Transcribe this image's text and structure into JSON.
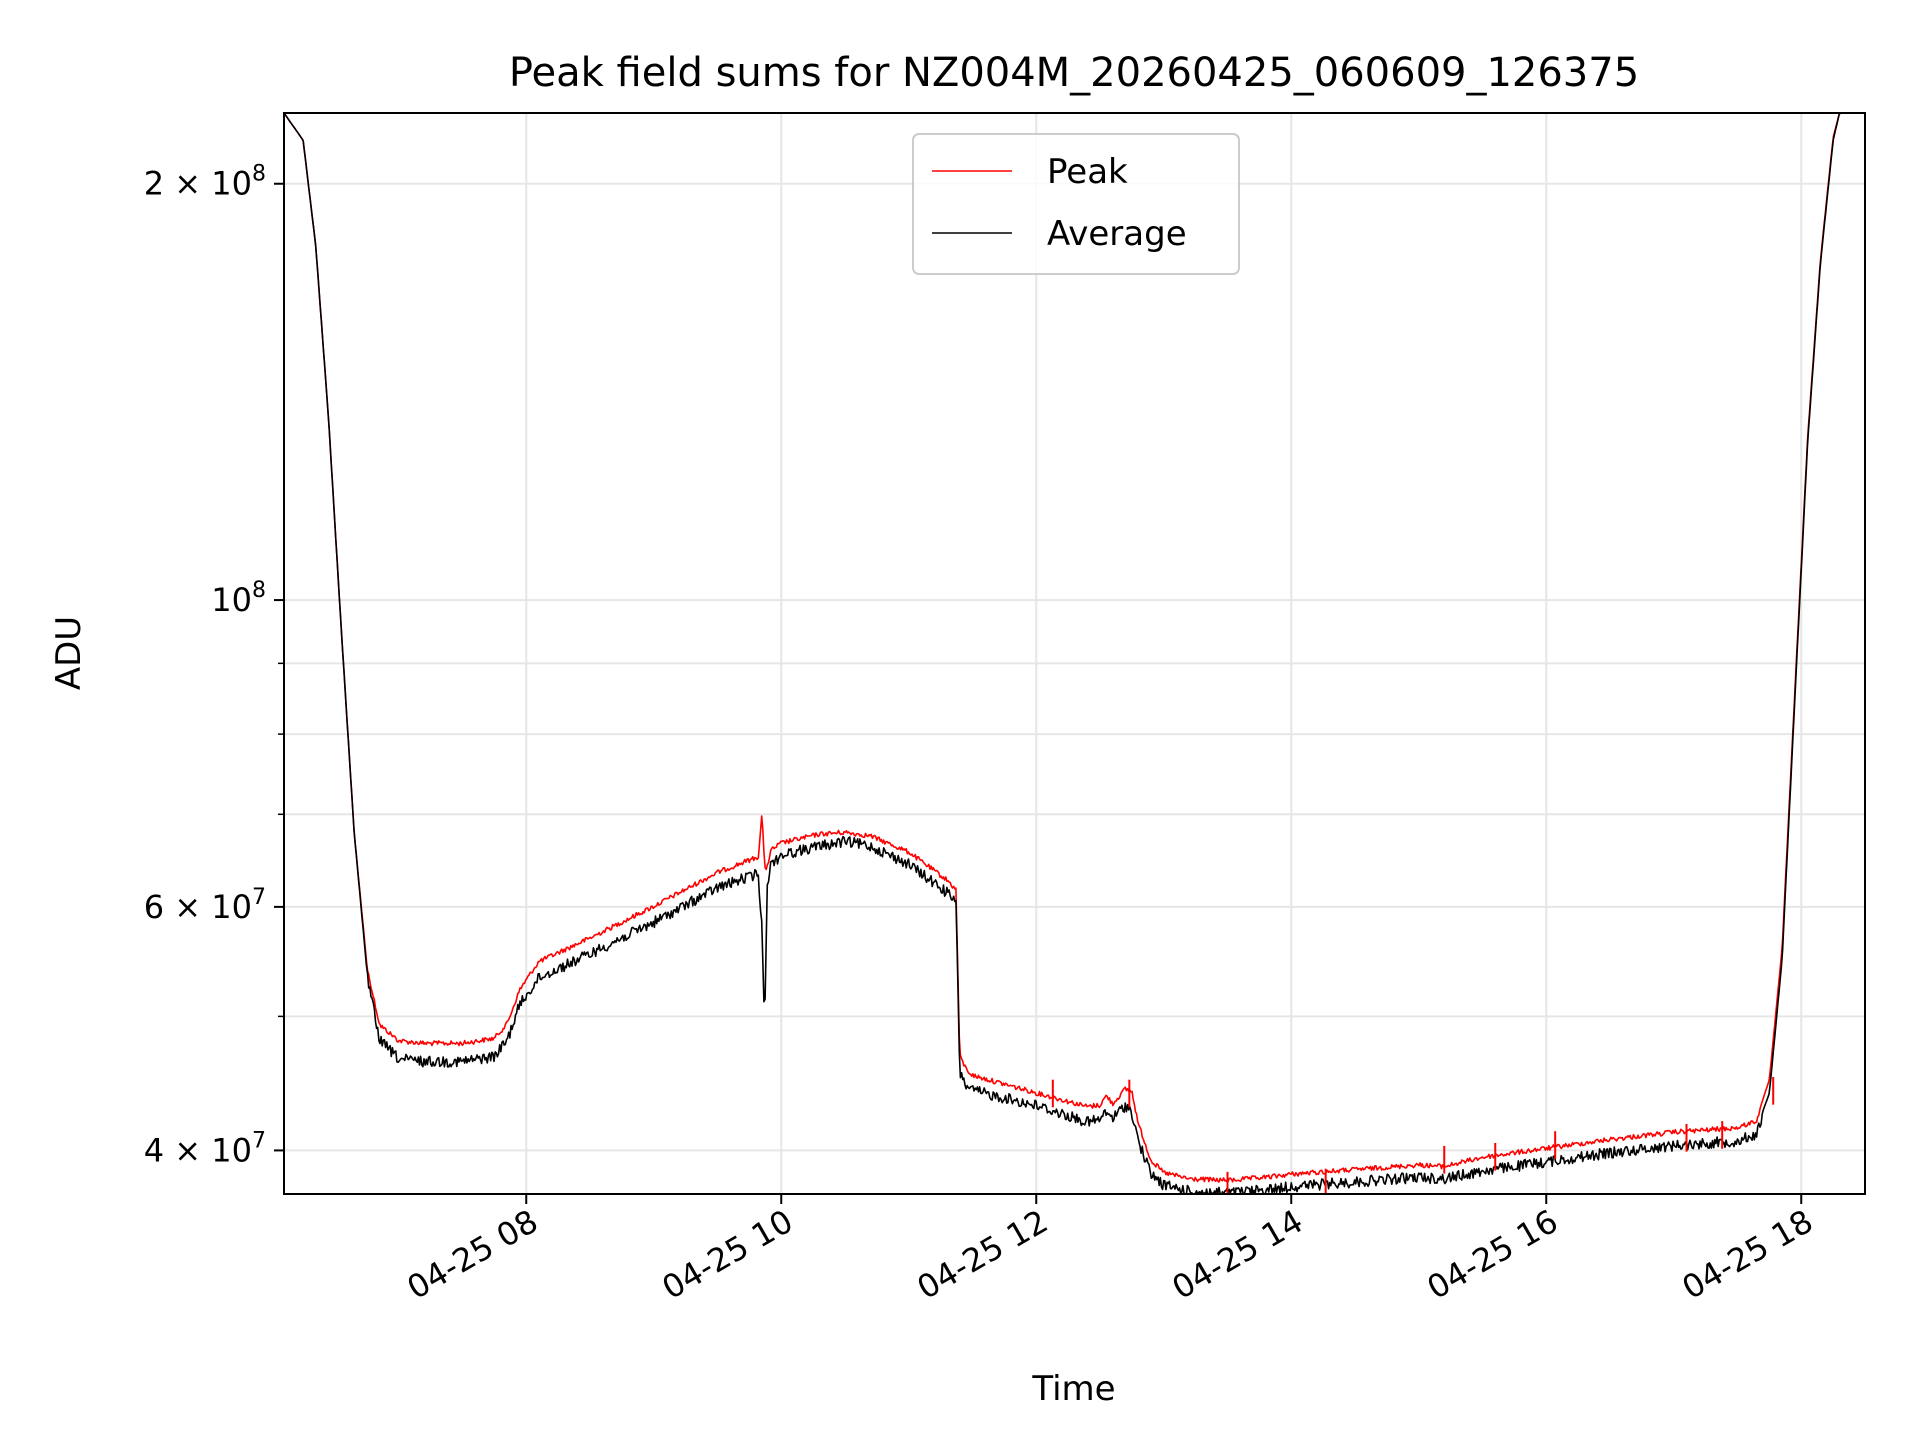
{
  "chart_data": {
    "type": "line",
    "scale": "log-y",
    "title": "Peak field sums for NZ004M_20260425_060609_126375",
    "xlabel": "Time",
    "ylabel": "ADU",
    "x_unit": "hours",
    "xlim": [
      6.1,
      18.5
    ],
    "ylim": [
      37200000,
      225000000
    ],
    "grid": true,
    "legend_placement": "upper-center",
    "legend": [
      {
        "name": "Peak",
        "color": "#ff0000"
      },
      {
        "name": "Average",
        "color": "#000000"
      }
    ],
    "x_ticks": [
      {
        "value": 8,
        "label": "04-25 08"
      },
      {
        "value": 10,
        "label": "04-25 10"
      },
      {
        "value": 12,
        "label": "04-25 12"
      },
      {
        "value": 14,
        "label": "04-25 14"
      },
      {
        "value": 16,
        "label": "04-25 16"
      },
      {
        "value": 18,
        "label": "04-25 18"
      }
    ],
    "y_major_ticks": [
      {
        "value": 40000000,
        "base": "4 × 10",
        "exp": "7"
      },
      {
        "value": 60000000,
        "base": "6 × 10",
        "exp": "7"
      },
      {
        "value": 100000000,
        "base": "10",
        "exp": "8"
      },
      {
        "value": 200000000,
        "base": "2 × 10",
        "exp": "8"
      }
    ],
    "y_minor_ticks": [
      50000000,
      70000000,
      80000000,
      90000000
    ],
    "series": [
      {
        "name": "Average",
        "color": "#000000",
        "x": [
          6.1,
          6.25,
          6.35,
          6.45,
          6.55,
          6.65,
          6.75,
          6.85,
          7.0,
          7.2,
          7.5,
          7.75,
          7.85,
          7.95,
          8.05,
          8.1,
          8.5,
          9.0,
          9.5,
          9.82,
          9.85,
          9.87,
          9.89,
          9.92,
          10.0,
          10.3,
          10.5,
          10.7,
          11.0,
          11.3,
          11.37,
          11.4,
          11.45,
          11.5,
          12.0,
          12.4,
          12.5,
          12.55,
          12.6,
          12.7,
          12.75,
          12.8,
          12.9,
          13.0,
          13.2,
          13.5,
          13.8,
          14.0,
          14.5,
          15.0,
          15.2,
          15.5,
          16.0,
          16.5,
          17.0,
          17.5,
          17.65,
          17.75,
          17.85,
          17.95,
          18.05,
          18.15,
          18.25,
          18.3,
          18.35,
          18.4,
          18.5
        ],
        "values": [
          225000000,
          215000000,
          180000000,
          135000000,
          95000000,
          68000000,
          54000000,
          48500000,
          47000000,
          46800000,
          46800000,
          47200000,
          48500000,
          51500000,
          53000000,
          53800000,
          56000000,
          59000000,
          62500000,
          64000000,
          58000000,
          50000000,
          63000000,
          65000000,
          66000000,
          67000000,
          67500000,
          67000000,
          65000000,
          62000000,
          61000000,
          46000000,
          45000000,
          44600000,
          43500000,
          42300000,
          42500000,
          43000000,
          42600000,
          43500000,
          43000000,
          41000000,
          38800000,
          38100000,
          37700000,
          37600000,
          37800000,
          38000000,
          38300000,
          38600000,
          38500000,
          39000000,
          39600000,
          40200000,
          40700000,
          41000000,
          41500000,
          44000000,
          55000000,
          85000000,
          130000000,
          175000000,
          215000000,
          225000000,
          225000000,
          225000000,
          225000000
        ]
      },
      {
        "name": "Peak",
        "color": "#ff0000",
        "x": [
          6.1,
          6.25,
          6.35,
          6.45,
          6.55,
          6.65,
          6.75,
          6.85,
          7.0,
          7.2,
          7.5,
          7.75,
          7.85,
          7.95,
          8.05,
          8.1,
          8.5,
          9.0,
          9.5,
          9.82,
          9.85,
          9.87,
          9.89,
          9.92,
          10.0,
          10.3,
          10.5,
          10.7,
          11.0,
          11.3,
          11.37,
          11.4,
          11.45,
          11.5,
          12.0,
          12.4,
          12.5,
          12.55,
          12.6,
          12.7,
          12.75,
          12.8,
          12.9,
          13.0,
          13.2,
          13.5,
          13.8,
          14.0,
          14.5,
          15.0,
          15.2,
          15.5,
          16.0,
          16.5,
          17.0,
          17.5,
          17.65,
          17.75,
          17.85,
          17.95,
          18.05,
          18.15,
          18.25,
          18.3,
          18.35,
          18.4,
          18.5
        ],
        "values": [
          225000000,
          215000000,
          180000000,
          135000000,
          95000000,
          68000000,
          54500000,
          49500000,
          48200000,
          48000000,
          48000000,
          48400000,
          49600000,
          52500000,
          54200000,
          55000000,
          57200000,
          60300000,
          63800000,
          65500000,
          70500000,
          64000000,
          64500000,
          66200000,
          67000000,
          68000000,
          68200000,
          67800000,
          66000000,
          63000000,
          62000000,
          47000000,
          46000000,
          45500000,
          44200000,
          43200000,
          43300000,
          44000000,
          43400000,
          44500000,
          44300000,
          42000000,
          39500000,
          38700000,
          38300000,
          38200000,
          38400000,
          38600000,
          38900000,
          39200000,
          39100000,
          39700000,
          40300000,
          40900000,
          41400000,
          41700000,
          42200000,
          45000000,
          56000000,
          86000000,
          131000000,
          176000000,
          216000000,
          225000000,
          225000000,
          225000000,
          225000000
        ]
      }
    ],
    "peak_spikes": [
      {
        "x": 12.13,
        "value": 45000000
      },
      {
        "x": 12.73,
        "value": 45000000
      },
      {
        "x": 13.5,
        "value": 38600000
      },
      {
        "x": 14.27,
        "value": 38800000
      },
      {
        "x": 15.2,
        "value": 40300000
      },
      {
        "x": 15.6,
        "value": 40500000
      },
      {
        "x": 16.07,
        "value": 41300000
      },
      {
        "x": 17.1,
        "value": 41800000
      },
      {
        "x": 17.38,
        "value": 42000000
      },
      {
        "x": 17.78,
        "value": 45200000
      }
    ]
  }
}
